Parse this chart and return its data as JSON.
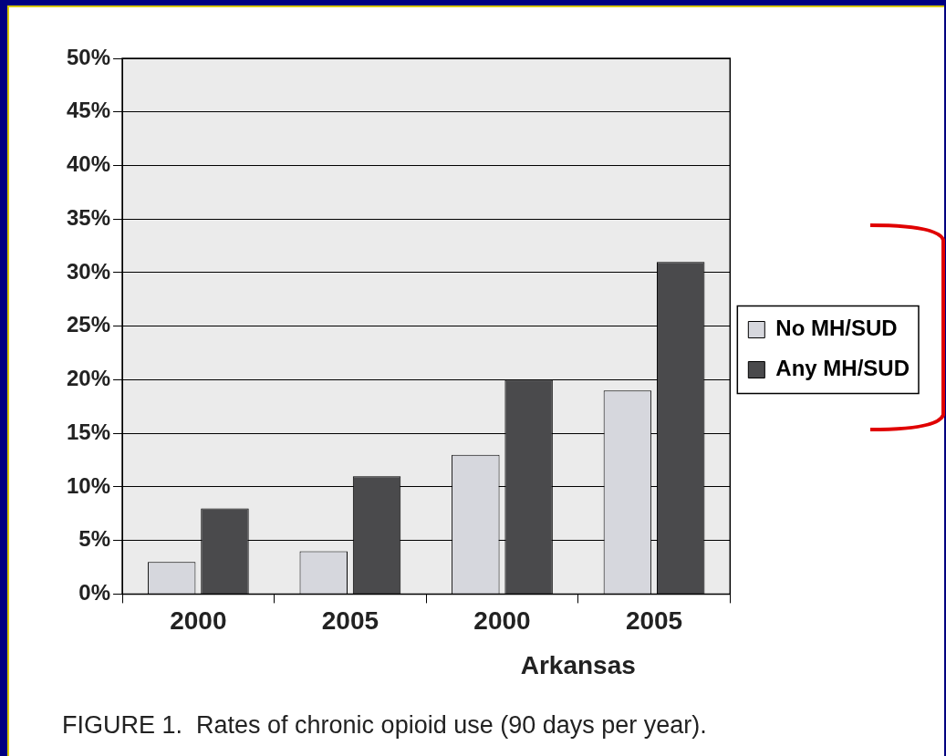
{
  "chart_data": {
    "type": "bar",
    "categories": [
      "2000",
      "2005",
      "2000",
      "2005"
    ],
    "series": [
      {
        "name": "No MH/SUD",
        "color": "#d6d7dd",
        "values": [
          3,
          4,
          13,
          19
        ]
      },
      {
        "name": "Any MH/SUD",
        "color": "#4a4a4c",
        "values": [
          8,
          11,
          20,
          31
        ]
      }
    ],
    "ylim": [
      0,
      50
    ],
    "yticks": [
      {
        "value": 0,
        "label": "0%"
      },
      {
        "value": 5,
        "label": "5%"
      },
      {
        "value": 10,
        "label": "10%"
      },
      {
        "value": 15,
        "label": "15%"
      },
      {
        "value": 20,
        "label": "20%"
      },
      {
        "value": 25,
        "label": "25%"
      },
      {
        "value": 30,
        "label": "30%"
      },
      {
        "value": 35,
        "label": "35%"
      },
      {
        "value": 40,
        "label": "40%"
      },
      {
        "value": 45,
        "label": "45%"
      },
      {
        "value": 50,
        "label": "50%"
      }
    ],
    "grid": "y",
    "legend": "right",
    "annotations": [
      {
        "text": "Arkansas"
      },
      "FIGURE 1.  Rates of chronic opioid use (90 days per year)."
    ]
  }
}
